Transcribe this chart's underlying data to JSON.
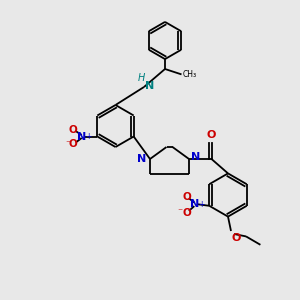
{
  "background_color": "#e8e8e8",
  "bond_color": "#000000",
  "nitrogen_color": "#0000cc",
  "oxygen_color": "#cc0000",
  "hn_color": "#008080",
  "lw": 1.3,
  "xlim": [
    0,
    10
  ],
  "ylim": [
    0,
    10
  ]
}
